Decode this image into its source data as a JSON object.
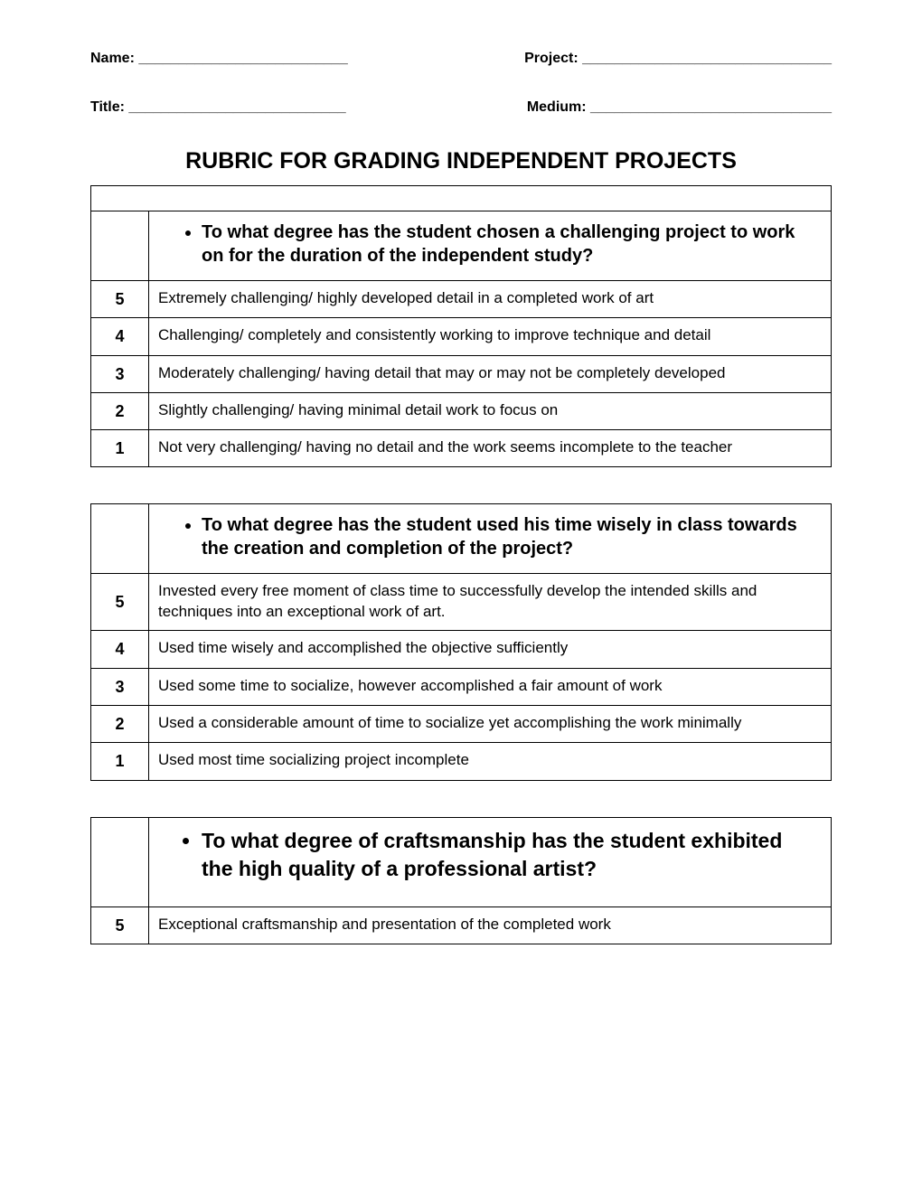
{
  "fields": {
    "name": "Name: __________________________",
    "project": "Project: _______________________________",
    "title": "Title: ___________________________",
    "medium": "Medium: ______________________________"
  },
  "pageTitle": "RUBRIC FOR GRADING INDEPENDENT PROJECTS",
  "sections": [
    {
      "spacer": true,
      "question": "To what degree has the student chosen a challenging project to work on for the duration of the independent study?",
      "rows": [
        {
          "score": "5",
          "text": "Extremely challenging/ highly developed detail in a completed work of art"
        },
        {
          "score": "4",
          "text": "Challenging/ completely and consistently working to improve technique and detail"
        },
        {
          "score": "3",
          "text": "Moderately challenging/ having detail that may or may not be completely developed"
        },
        {
          "score": "2",
          "text": "Slightly challenging/ having minimal detail work to focus on"
        },
        {
          "score": "1",
          "text": "Not very challenging/ having no detail and the work seems incomplete to the teacher"
        }
      ]
    },
    {
      "spacer": false,
      "question": "To what degree has the student used his time wisely in class towards the creation and completion of the project?",
      "rows": [
        {
          "score": "5",
          "text": "Invested every free moment of class time to successfully develop the intended skills and techniques into an exceptional work of art."
        },
        {
          "score": "4",
          "text": "Used time wisely and accomplished the objective sufficiently"
        },
        {
          "score": "3",
          "text": "Used some time to socialize, however accomplished a fair amount of work"
        },
        {
          "score": "2",
          "text": "Used a considerable amount of time to socialize yet accomplishing the work minimally"
        },
        {
          "score": "1",
          "text": "Used most time socializing project incomplete"
        }
      ]
    },
    {
      "spacer": false,
      "bigQuestion": true,
      "question": "To what degree of craftsmanship has the student exhibited the high quality of a professional artist?",
      "rows": [
        {
          "score": "5",
          "text": "Exceptional craftsmanship and presentation of the completed work"
        }
      ]
    }
  ]
}
